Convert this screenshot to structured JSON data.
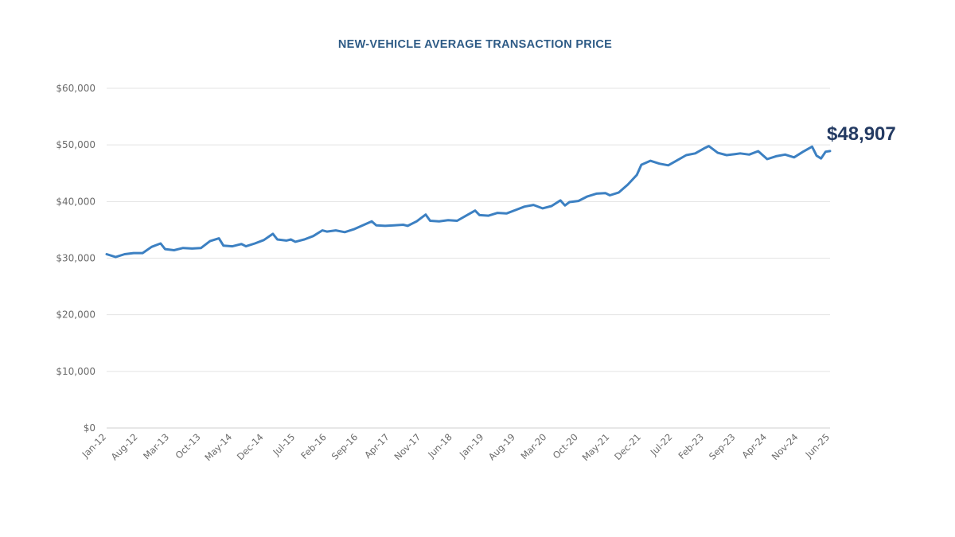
{
  "chart_data": {
    "type": "line",
    "title": "NEW-VEHICLE AVERAGE TRANSACTION PRICE",
    "xlabel": "",
    "ylabel": "",
    "ylim": [
      0,
      60000
    ],
    "y_ticks": [
      0,
      10000,
      20000,
      30000,
      40000,
      50000,
      60000
    ],
    "y_tick_labels": [
      "$0",
      "$10,000",
      "$20,000",
      "$30,000",
      "$40,000",
      "$50,000",
      "$60,000"
    ],
    "x_range": [
      "Jan-12",
      "Jun-25"
    ],
    "x_tick_labels": [
      "Jan-12",
      "Aug-12",
      "Mar-13",
      "Oct-13",
      "May-14",
      "Dec-14",
      "Jul-15",
      "Feb-16",
      "Sep-16",
      "Apr-17",
      "Nov-17",
      "Jun-18",
      "Jan-19",
      "Aug-19",
      "Mar-20",
      "Oct-20",
      "May-21",
      "Dec-21",
      "Jul-22",
      "Feb-23",
      "Sep-23",
      "Apr-24",
      "Nov-24",
      "Jun-25"
    ],
    "grid": true,
    "series": [
      {
        "color": "#3c80c2",
        "points": [
          [
            "Jan-12",
            30700
          ],
          [
            "Mar-12",
            30200
          ],
          [
            "May-12",
            30700
          ],
          [
            "Jul-12",
            30900
          ],
          [
            "Sep-12",
            30900
          ],
          [
            "Nov-12",
            32000
          ],
          [
            "Jan-13",
            32600
          ],
          [
            "Feb-13",
            31600
          ],
          [
            "Apr-13",
            31400
          ],
          [
            "Jun-13",
            31800
          ],
          [
            "Aug-13",
            31700
          ],
          [
            "Oct-13",
            31800
          ],
          [
            "Dec-13",
            33000
          ],
          [
            "Feb-14",
            33500
          ],
          [
            "Mar-14",
            32200
          ],
          [
            "May-14",
            32100
          ],
          [
            "Jul-14",
            32500
          ],
          [
            "Aug-14",
            32100
          ],
          [
            "Oct-14",
            32600
          ],
          [
            "Dec-14",
            33200
          ],
          [
            "Feb-15",
            34300
          ],
          [
            "Mar-15",
            33300
          ],
          [
            "May-15",
            33100
          ],
          [
            "Jun-15",
            33300
          ],
          [
            "Jul-15",
            32900
          ],
          [
            "Sep-15",
            33300
          ],
          [
            "Nov-15",
            33900
          ],
          [
            "Jan-16",
            34900
          ],
          [
            "Feb-16",
            34700
          ],
          [
            "Apr-16",
            34900
          ],
          [
            "Jun-16",
            34600
          ],
          [
            "Aug-16",
            35100
          ],
          [
            "Oct-16",
            35800
          ],
          [
            "Dec-16",
            36500
          ],
          [
            "Jan-17",
            35800
          ],
          [
            "Mar-17",
            35700
          ],
          [
            "May-17",
            35800
          ],
          [
            "Jul-17",
            35900
          ],
          [
            "Aug-17",
            35700
          ],
          [
            "Oct-17",
            36500
          ],
          [
            "Dec-17",
            37700
          ],
          [
            "Jan-18",
            36600
          ],
          [
            "Mar-18",
            36500
          ],
          [
            "May-18",
            36700
          ],
          [
            "Jul-18",
            36600
          ],
          [
            "Sep-18",
            37500
          ],
          [
            "Nov-18",
            38400
          ],
          [
            "Dec-18",
            37600
          ],
          [
            "Feb-19",
            37500
          ],
          [
            "Apr-19",
            38000
          ],
          [
            "Jun-19",
            37900
          ],
          [
            "Aug-19",
            38500
          ],
          [
            "Oct-19",
            39100
          ],
          [
            "Dec-19",
            39400
          ],
          [
            "Feb-20",
            38800
          ],
          [
            "Apr-20",
            39200
          ],
          [
            "Jun-20",
            40200
          ],
          [
            "Jul-20",
            39300
          ],
          [
            "Aug-20",
            39900
          ],
          [
            "Oct-20",
            40100
          ],
          [
            "Dec-20",
            40900
          ],
          [
            "Feb-21",
            41400
          ],
          [
            "Apr-21",
            41500
          ],
          [
            "May-21",
            41100
          ],
          [
            "Jul-21",
            41600
          ],
          [
            "Sep-21",
            43000
          ],
          [
            "Nov-21",
            44700
          ],
          [
            "Dec-21",
            46500
          ],
          [
            "Feb-22",
            47200
          ],
          [
            "Apr-22",
            46700
          ],
          [
            "Jun-22",
            46400
          ],
          [
            "Aug-22",
            47300
          ],
          [
            "Oct-22",
            48200
          ],
          [
            "Dec-22",
            48500
          ],
          [
            "Feb-23",
            49400
          ],
          [
            "Mar-23",
            49800
          ],
          [
            "May-23",
            48600
          ],
          [
            "Jul-23",
            48200
          ],
          [
            "Sep-23",
            48400
          ],
          [
            "Oct-23",
            48500
          ],
          [
            "Dec-23",
            48300
          ],
          [
            "Feb-24",
            48900
          ],
          [
            "Apr-24",
            47500
          ],
          [
            "Jun-24",
            48000
          ],
          [
            "Aug-24",
            48300
          ],
          [
            "Oct-24",
            47800
          ],
          [
            "Dec-24",
            48800
          ],
          [
            "Feb-25",
            49700
          ],
          [
            "Mar-25",
            48100
          ],
          [
            "Apr-25",
            47600
          ],
          [
            "May-25",
            48800
          ],
          [
            "Jun-25",
            48907
          ]
        ]
      }
    ],
    "annotations": [
      {
        "text": "$48,907",
        "x": "Jun-25",
        "y": 48907
      }
    ]
  }
}
